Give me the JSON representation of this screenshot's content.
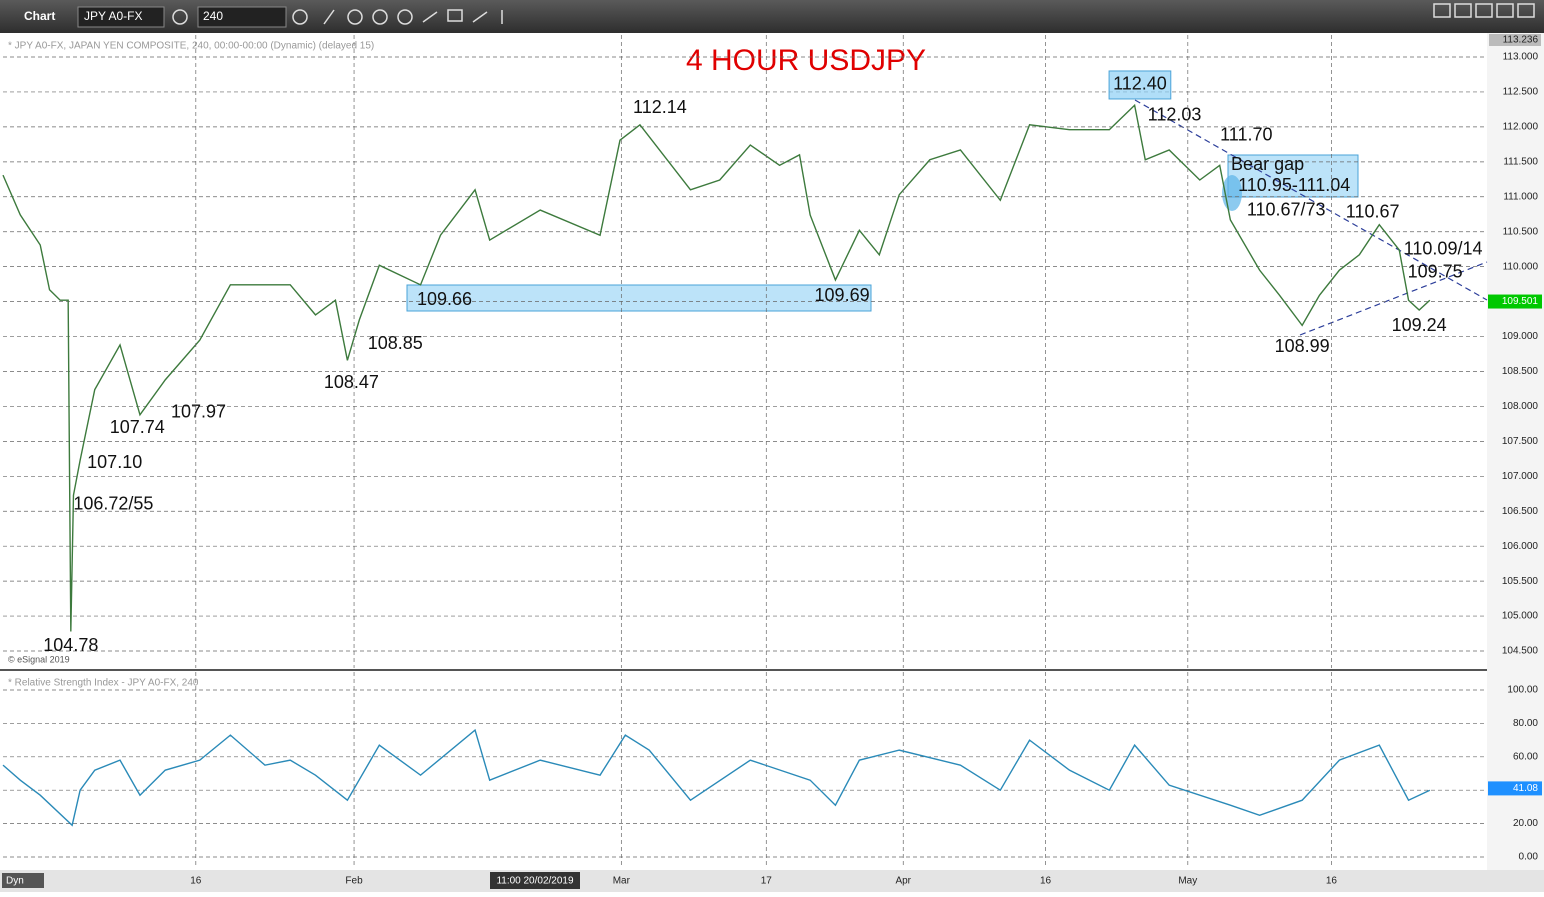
{
  "toolbar": {
    "app": "Chart",
    "symbol": "JPY A0-FX",
    "interval": "240"
  },
  "chart_data": [
    {
      "type": "line",
      "title": "4 HOUR USDJPY",
      "subtitle": "* JPY A0-FX, JAPAN YEN COMPOSITE, 240, 00:00-00:00 (Dynamic) (delayed 15)",
      "credit": "© eSignal 2019",
      "color": "#3d7a3d",
      "grid": true,
      "x": [
        0,
        1.3,
        2.8,
        3.5,
        4.3,
        4.9,
        5.1,
        5.3,
        5.8,
        6.9,
        8.8,
        10.3,
        12.2,
        14.8,
        17.1,
        19.7,
        21.6,
        23.5,
        25.0,
        25.9,
        26.8,
        28.3,
        31.4,
        32.9,
        35.5,
        36.6,
        40.4,
        44.9,
        46.4,
        47.9,
        51.7,
        53.9,
        56.2,
        58.4,
        59.9,
        60.7,
        62.6,
        64.4,
        65.9,
        67.4,
        69.7,
        72.0,
        75.0,
        77.2,
        80.2,
        83.2,
        85.1,
        85.9,
        87.7,
        90.0,
        91.5,
        92.3,
        94.5,
        96.0,
        97.7,
        99.0,
        100.5,
        102.0,
        103.5,
        105.0,
        105.7,
        106.5,
        107.3
      ],
      "values": [
        111.31,
        110.74,
        110.31,
        109.67,
        109.52,
        109.52,
        104.78,
        106.73,
        107.23,
        108.24,
        108.88,
        107.88,
        108.38,
        108.95,
        109.74,
        109.74,
        109.74,
        109.31,
        109.52,
        108.66,
        109.24,
        110.02,
        109.74,
        110.45,
        111.1,
        110.38,
        110.81,
        110.45,
        111.81,
        112.03,
        111.1,
        111.24,
        111.74,
        111.45,
        111.6,
        110.74,
        109.81,
        110.52,
        110.17,
        111.03,
        111.53,
        111.67,
        110.95,
        112.03,
        111.96,
        111.96,
        112.31,
        111.53,
        111.67,
        111.24,
        111.45,
        110.67,
        109.95,
        109.59,
        109.16,
        109.59,
        109.95,
        110.17,
        110.6,
        110.24,
        109.52,
        109.38,
        109.52
      ],
      "xlim": [
        0,
        111.6
      ],
      "ylim": [
        104.257,
        113.315
      ],
      "yticks": [
        {
          "value": 104.5,
          "label": "104.500"
        },
        {
          "value": 105,
          "label": "105.000"
        },
        {
          "value": 105.5,
          "label": "105.500"
        },
        {
          "value": 106,
          "label": "106.000"
        },
        {
          "value": 106.5,
          "label": "106.500"
        },
        {
          "value": 107,
          "label": "107.000"
        },
        {
          "value": 107.5,
          "label": "107.500"
        },
        {
          "value": 108,
          "label": "108.000"
        },
        {
          "value": 108.5,
          "label": "108.500"
        },
        {
          "value": 109,
          "label": "109.000"
        },
        {
          "value": 109.5,
          "label": "109.500"
        },
        {
          "value": 110,
          "label": "110.000"
        },
        {
          "value": 110.5,
          "label": "110.500"
        },
        {
          "value": 111,
          "label": "111.000"
        },
        {
          "value": 111.5,
          "label": "111.500"
        },
        {
          "value": 112,
          "label": "112.000"
        },
        {
          "value": 112.5,
          "label": "112.500"
        },
        {
          "value": 113,
          "label": "113.000"
        }
      ],
      "axis_high": {
        "value": 113.236,
        "label": "113.236"
      },
      "last_value": {
        "value": 109.501,
        "label": "109.501"
      },
      "last_color": "#00c800",
      "annotations": [
        {
          "text": "112.40",
          "x": 85.5,
          "y": 112.6,
          "boxed": true
        },
        {
          "text": "112.03",
          "x": 88.1,
          "y": 112.16
        },
        {
          "text": "111.70",
          "x": 93.5,
          "y": 111.87
        },
        {
          "text": "Bear gap",
          "x": 95.1,
          "y": 111.45
        },
        {
          "text": "110.95-111.04",
          "x": 97.1,
          "y": 111.15
        },
        {
          "text": "110.67/73",
          "x": 96.5,
          "y": 110.8
        },
        {
          "text": "110.67",
          "x": 103.0,
          "y": 110.77
        },
        {
          "text": "110.09/14",
          "x": 108.3,
          "y": 110.24
        },
        {
          "text": "109.75",
          "x": 107.7,
          "y": 109.91
        },
        {
          "text": "109.24",
          "x": 106.5,
          "y": 109.15
        },
        {
          "text": "108.99",
          "x": 97.7,
          "y": 108.85
        },
        {
          "text": "112.14",
          "x": 49.4,
          "y": 112.27
        },
        {
          "text": "109.66",
          "x": 33.2,
          "y": 109.52
        },
        {
          "text": "109.69",
          "x": 63.1,
          "y": 109.58
        },
        {
          "text": "108.85",
          "x": 29.5,
          "y": 108.89
        },
        {
          "text": "108.47",
          "x": 26.2,
          "y": 108.33
        },
        {
          "text": "107.97",
          "x": 14.7,
          "y": 107.91
        },
        {
          "text": "107.74",
          "x": 10.1,
          "y": 107.69
        },
        {
          "text": "107.10",
          "x": 8.4,
          "y": 107.19
        },
        {
          "text": "106.72/55",
          "x": 8.3,
          "y": 106.59
        },
        {
          "text": "104.78",
          "x": 5.1,
          "y": 104.57
        }
      ]
    },
    {
      "type": "line",
      "title": "* Relative Strength Index - JPY A0-FX, 240",
      "color": "#2a8ab8",
      "grid": true,
      "x": [
        0,
        1.3,
        2.8,
        5.2,
        5.8,
        6.9,
        8.8,
        10.3,
        12.2,
        14.8,
        17.1,
        19.7,
        21.6,
        23.5,
        25.9,
        28.3,
        31.4,
        35.5,
        36.6,
        40.4,
        44.9,
        46.8,
        48.6,
        51.7,
        56.2,
        60.7,
        62.6,
        64.4,
        67.4,
        72.0,
        75.0,
        77.2,
        80.2,
        83.2,
        85.1,
        87.7,
        92.3,
        94.5,
        97.7,
        100.5,
        103.5,
        105.7,
        107.3
      ],
      "values": [
        55,
        46,
        37,
        19,
        40,
        52,
        58,
        37,
        52,
        58,
        73,
        55,
        58,
        49,
        34,
        67,
        49,
        76,
        46,
        58,
        49,
        73,
        64,
        34,
        58,
        46,
        31,
        58,
        64,
        55,
        40,
        70,
        52,
        40,
        67,
        43,
        31,
        25,
        34,
        58,
        67,
        34,
        40
      ],
      "xlim": [
        0,
        111.6
      ],
      "ylim": [
        -6.6,
        110.8
      ],
      "yticks": [
        {
          "value": 0,
          "label": "0.00"
        },
        {
          "value": 20,
          "label": "20.00"
        },
        {
          "value": 40,
          "label": "40.00"
        },
        {
          "value": 60,
          "label": "60.00"
        },
        {
          "value": 80,
          "label": "80.00"
        },
        {
          "value": 100,
          "label": "100.00"
        }
      ],
      "last_value": {
        "value": 41.08,
        "label": "41.08"
      },
      "last_color": "#1e90ff",
      "xticks": [
        {
          "value": 14.5,
          "label": "16"
        },
        {
          "value": 26.4,
          "label": "Feb"
        },
        {
          "value": 46.5,
          "label": "Mar"
        },
        {
          "value": 57.4,
          "label": "17"
        },
        {
          "value": 67.7,
          "label": "Apr"
        },
        {
          "value": 78.4,
          "label": "16"
        },
        {
          "value": 89.1,
          "label": "May"
        },
        {
          "value": 99.9,
          "label": "16"
        }
      ],
      "cursor_label": "11:00 20/02/2019",
      "mode": "Dyn"
    }
  ]
}
